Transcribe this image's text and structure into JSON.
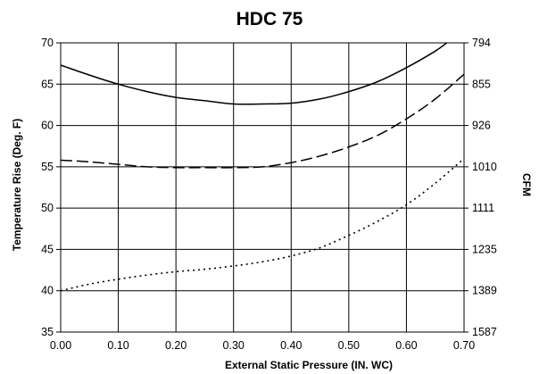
{
  "chart_data": {
    "type": "line",
    "title": "HDC 75",
    "xlabel": "External Static Pressure (IN. WC)",
    "ylabel": "Temperature Rise (Deg. F)",
    "y2label": "CFM",
    "x_ticks": [
      "0.00",
      "0.10",
      "0.20",
      "0.30",
      "0.40",
      "0.50",
      "0.60",
      "0.70"
    ],
    "y_ticks": [
      "35",
      "40",
      "45",
      "50",
      "55",
      "60",
      "65",
      "70"
    ],
    "y2_ticks": [
      "794",
      "855",
      "926",
      "1010",
      "1111",
      "1235",
      "1389",
      "1587"
    ],
    "xlim": [
      0,
      0.7
    ],
    "ylim": [
      35,
      70
    ],
    "grid": true,
    "series": [
      {
        "style": "solid",
        "x": [
          0.0,
          0.05,
          0.1,
          0.15,
          0.2,
          0.25,
          0.3,
          0.35,
          0.4,
          0.45,
          0.5,
          0.55,
          0.6,
          0.65,
          0.67
        ],
        "y": [
          67.3,
          66.1,
          65.0,
          64.1,
          63.4,
          63.0,
          62.6,
          62.6,
          62.7,
          63.2,
          64.1,
          65.3,
          67.0,
          69.0,
          70.0
        ]
      },
      {
        "style": "dashed",
        "x": [
          0.0,
          0.05,
          0.1,
          0.15,
          0.2,
          0.25,
          0.3,
          0.35,
          0.4,
          0.45,
          0.5,
          0.55,
          0.6,
          0.65,
          0.7
        ],
        "y": [
          55.8,
          55.6,
          55.3,
          55.0,
          54.9,
          54.9,
          54.9,
          55.0,
          55.5,
          56.3,
          57.4,
          58.8,
          60.8,
          63.2,
          66.2
        ]
      },
      {
        "style": "dotted",
        "x": [
          0.0,
          0.05,
          0.1,
          0.15,
          0.2,
          0.25,
          0.3,
          0.35,
          0.4,
          0.45,
          0.5,
          0.55,
          0.6,
          0.65,
          0.7
        ],
        "y": [
          40.0,
          40.8,
          41.4,
          41.9,
          42.3,
          42.6,
          43.0,
          43.5,
          44.2,
          45.2,
          46.7,
          48.4,
          50.4,
          53.0,
          56.0
        ]
      }
    ]
  }
}
